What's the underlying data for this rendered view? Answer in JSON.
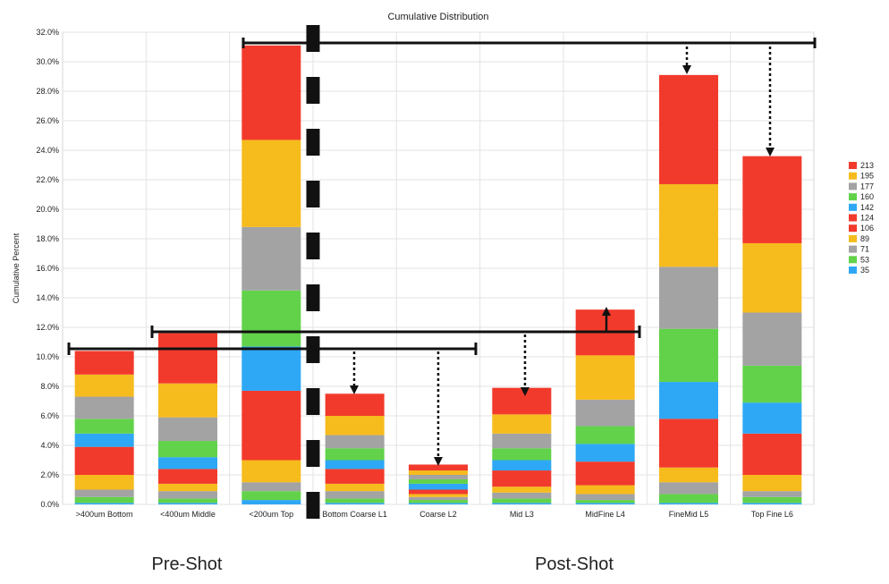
{
  "chart_data": {
    "type": "bar",
    "stacked": true,
    "title": "Cumulative Distribution",
    "xlabel": "",
    "ylabel": "Cumulative Percent",
    "ylim": [
      0,
      32
    ],
    "yticks": [
      "0.0%",
      "2.0%",
      "4.0%",
      "6.0%",
      "8.0%",
      "10.0%",
      "12.0%",
      "14.0%",
      "16.0%",
      "18.0%",
      "20.0%",
      "22.0%",
      "24.0%",
      "26.0%",
      "28.0%",
      "30.0%",
      "32.0%"
    ],
    "grid": true,
    "legend_position": "right",
    "categories": [
      ">400um Bottom",
      "<400um Middle",
      "<200um Top",
      "Bottom Coarse L1",
      "Coarse L2",
      "Mid L3",
      "MidFine L4",
      "FineMid L5",
      "Top Fine L6"
    ],
    "series": [
      {
        "name": "35",
        "color": "#2ea8f5",
        "values": [
          0.1,
          0.1,
          0.3,
          0.1,
          0.1,
          0.1,
          0.1,
          0.1,
          0.1
        ]
      },
      {
        "name": "53",
        "color": "#62d24a",
        "values": [
          0.4,
          0.3,
          0.6,
          0.3,
          0.2,
          0.3,
          0.2,
          0.6,
          0.4
        ]
      },
      {
        "name": "71",
        "color": "#a3a3a3",
        "values": [
          0.5,
          0.5,
          0.6,
          0.5,
          0.2,
          0.4,
          0.4,
          0.8,
          0.4
        ]
      },
      {
        "name": "89",
        "color": "#f6bb1d",
        "values": [
          1.0,
          0.5,
          1.5,
          0.5,
          0.2,
          0.4,
          0.6,
          1.0,
          1.1
        ]
      },
      {
        "name": "106",
        "color": "#f23a2c",
        "values": [
          1.9,
          1.0,
          4.7,
          1.0,
          0.3,
          1.1,
          1.6,
          3.3,
          2.8
        ]
      },
      {
        "name": "124",
        "color": "#f23a2c",
        "values": [
          0.0,
          0.0,
          0.0,
          0.0,
          0.0,
          0.0,
          0.0,
          0.0,
          0.0
        ]
      },
      {
        "name": "142",
        "color": "#2ea8f5",
        "values": [
          0.9,
          0.8,
          3.0,
          0.6,
          0.4,
          0.7,
          1.2,
          2.5,
          2.1
        ]
      },
      {
        "name": "160",
        "color": "#62d24a",
        "values": [
          1.0,
          1.1,
          3.8,
          0.8,
          0.3,
          0.8,
          1.2,
          3.6,
          2.5
        ]
      },
      {
        "name": "177",
        "color": "#a3a3a3",
        "values": [
          1.5,
          1.6,
          4.3,
          0.9,
          0.3,
          1.0,
          1.8,
          4.2,
          3.6
        ]
      },
      {
        "name": "195",
        "color": "#f6bb1d",
        "values": [
          1.5,
          2.3,
          5.9,
          1.3,
          0.3,
          1.3,
          3.0,
          5.6,
          4.7
        ]
      },
      {
        "name": "213",
        "color": "#f23a2c",
        "values": [
          1.6,
          3.4,
          6.4,
          1.5,
          0.4,
          1.8,
          3.1,
          7.4,
          5.9
        ]
      }
    ],
    "legend": [
      "213",
      "195",
      "177",
      "160",
      "142",
      "124",
      "106",
      "89",
      "71",
      "53",
      "35"
    ],
    "annotations": {
      "group_labels": [
        "Pre-Shot",
        "Post-Shot"
      ]
    }
  }
}
